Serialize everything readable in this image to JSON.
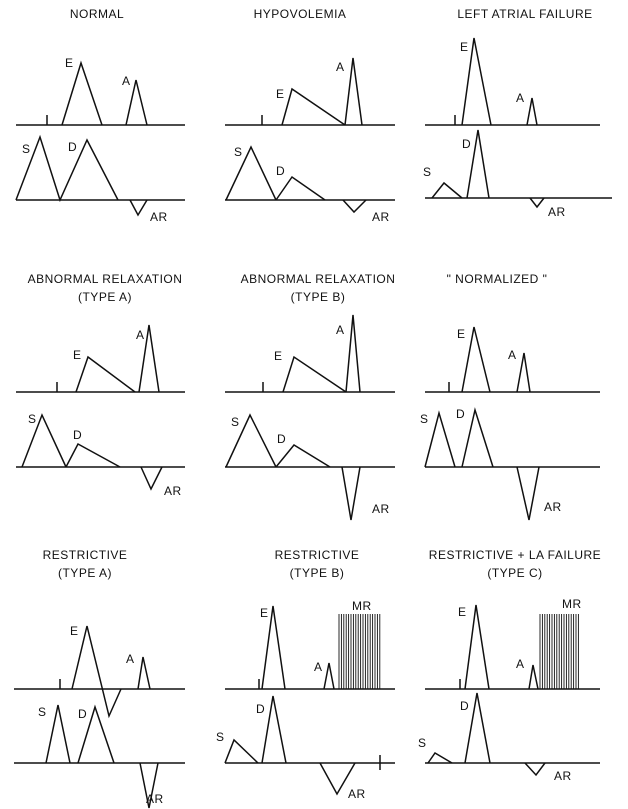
{
  "panels": [
    {
      "title": [
        "NORMAL"
      ],
      "labels": [
        "E",
        "A",
        "S",
        "D",
        "AR"
      ]
    },
    {
      "title": [
        "HYPOVOLEMIA"
      ],
      "labels": [
        "E",
        "A",
        "S",
        "D",
        "AR"
      ]
    },
    {
      "title": [
        "LEFT ATRIAL FAILURE"
      ],
      "labels": [
        "E",
        "A",
        "S",
        "D",
        "AR"
      ]
    },
    {
      "title": [
        "ABNORMAL RELAXATION",
        "(TYPE A)"
      ],
      "labels": [
        "E",
        "A",
        "S",
        "D",
        "AR"
      ]
    },
    {
      "title": [
        "ABNORMAL RELAXATION",
        "(TYPE B)"
      ],
      "labels": [
        "E",
        "A",
        "S",
        "D",
        "AR"
      ]
    },
    {
      "title": [
        "\" NORMALIZED \""
      ],
      "labels": [
        "E",
        "A",
        "S",
        "D",
        "AR"
      ]
    },
    {
      "title": [
        "RESTRICTIVE",
        "(TYPE A)"
      ],
      "labels": [
        "E",
        "A",
        "S",
        "D",
        "AR"
      ]
    },
    {
      "title": [
        "RESTRICTIVE",
        "(TYPE B)"
      ],
      "labels": [
        "E",
        "A",
        "MR",
        "S",
        "D",
        "AR"
      ]
    },
    {
      "title": [
        "RESTRICTIVE + LA FAILURE",
        "(TYPE C)"
      ],
      "labels": [
        "E",
        "A",
        "MR",
        "S",
        "D",
        "AR"
      ]
    }
  ]
}
